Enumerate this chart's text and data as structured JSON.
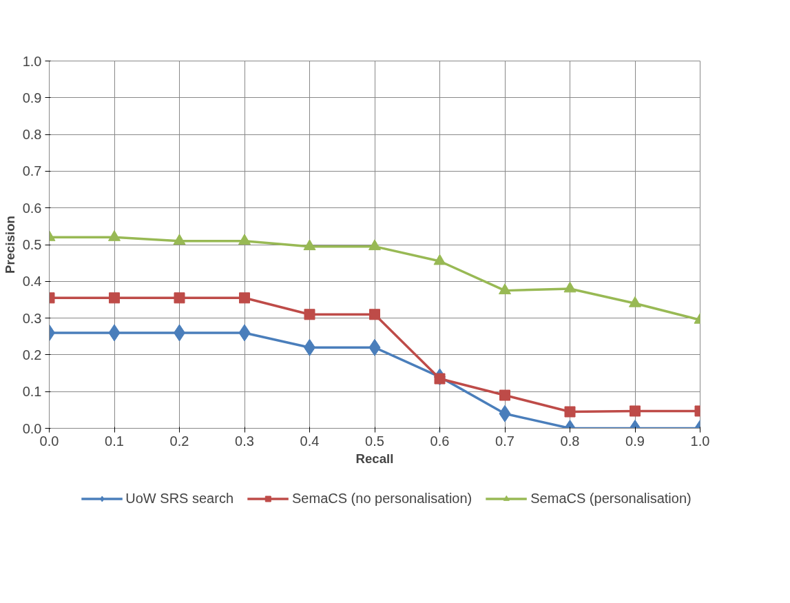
{
  "chart_data": {
    "type": "line",
    "xlabel": "Recall",
    "ylabel": "Precision",
    "x": [
      0.0,
      0.1,
      0.2,
      0.3,
      0.4,
      0.5,
      0.6,
      0.7,
      0.8,
      0.9,
      1.0
    ],
    "series": [
      {
        "name": "UoW SRS search",
        "color": "#4a7ebb",
        "marker": "diamond",
        "values": [
          0.26,
          0.26,
          0.26,
          0.26,
          0.22,
          0.22,
          0.14,
          0.04,
          0.0,
          0.0,
          0.0
        ]
      },
      {
        "name": "SemaCS (no personalisation)",
        "color": "#be4b48",
        "marker": "square",
        "values": [
          0.355,
          0.355,
          0.355,
          0.355,
          0.31,
          0.31,
          0.135,
          0.09,
          0.045,
          0.047,
          0.047
        ]
      },
      {
        "name": "SemaCS (personalisation)",
        "color": "#98b954",
        "marker": "triangle",
        "values": [
          0.52,
          0.52,
          0.51,
          0.51,
          0.495,
          0.495,
          0.455,
          0.375,
          0.38,
          0.34,
          0.295
        ]
      }
    ],
    "xlim": [
      0,
      1
    ],
    "ylim": [
      0,
      1
    ],
    "xticks": [
      {
        "value": 0,
        "label": "0.0"
      },
      {
        "value": 0.1,
        "label": "0.1"
      },
      {
        "value": 0.2,
        "label": "0.2"
      },
      {
        "value": 0.3,
        "label": "0.3"
      },
      {
        "value": 0.4,
        "label": "0.4"
      },
      {
        "value": 0.5,
        "label": "0.5"
      },
      {
        "value": 0.6,
        "label": "0.6"
      },
      {
        "value": 0.7,
        "label": "0.7"
      },
      {
        "value": 0.8,
        "label": "0.8"
      },
      {
        "value": 0.9,
        "label": "0.9"
      },
      {
        "value": 1,
        "label": "1.0"
      }
    ],
    "yticks": [
      {
        "value": 0,
        "label": "0.0"
      },
      {
        "value": 0.1,
        "label": "0.1"
      },
      {
        "value": 0.2,
        "label": "0.2"
      },
      {
        "value": 0.3,
        "label": "0.3"
      },
      {
        "value": 0.4,
        "label": "0.4"
      },
      {
        "value": 0.5,
        "label": "0.5"
      },
      {
        "value": 0.6,
        "label": "0.6"
      },
      {
        "value": 0.7,
        "label": "0.7"
      },
      {
        "value": 0.8,
        "label": "0.8"
      },
      {
        "value": 0.9,
        "label": "0.9"
      },
      {
        "value": 1,
        "label": "1.0"
      }
    ],
    "grid": true,
    "legend": "bottom",
    "line_style": "solid"
  }
}
